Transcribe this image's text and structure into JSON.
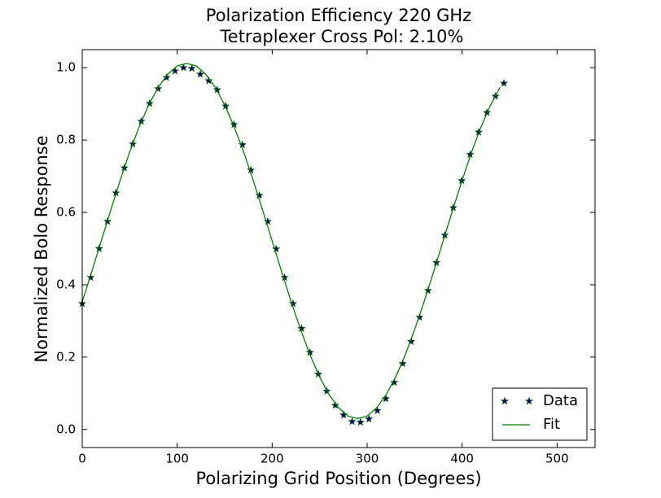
{
  "chart_data": {
    "type": "line",
    "title": "Polarization Efficiency 220 GHz",
    "subtitle": "Tetraplexer Cross Pol: 2.10%",
    "x_label": "Polarizing Grid Position (Degrees)",
    "y_label": "Normalized Bolo Response",
    "xlim": [
      0,
      540
    ],
    "ylim": [
      -0.05,
      1.05
    ],
    "xticks": [
      0,
      100,
      200,
      300,
      400,
      500
    ],
    "yticks": [
      {
        "value": 0,
        "label": "0.0"
      },
      {
        "value": 0.2,
        "label": "0.2"
      },
      {
        "value": 0.4,
        "label": "0.4"
      },
      {
        "value": 0.6,
        "label": "0.6"
      },
      {
        "value": 0.8,
        "label": "0.8"
      },
      {
        "value": 1,
        "label": "1.0"
      }
    ],
    "legend": "lower right",
    "series": [
      {
        "name": "Data",
        "style": "markers",
        "color": "#000066",
        "x": [
          0,
          8.9,
          17.8,
          26.6,
          35.5,
          44.4,
          53.3,
          62.2,
          71.0,
          79.9,
          88.8,
          97.7,
          106.6,
          115.4,
          124.3,
          133.2,
          142.1,
          151.0,
          159.8,
          168.7,
          177.6,
          186.5,
          195.4,
          204.2,
          213.1,
          222.0,
          230.9,
          239.8,
          248.6,
          257.5,
          266.4,
          275.3,
          284.2,
          293.0,
          301.9,
          310.8,
          319.7,
          328.6,
          337.4,
          346.3,
          355.2,
          364.1,
          373.0,
          381.8,
          390.7,
          399.6,
          408.5,
          417.4,
          426.2,
          435.1,
          444.0
        ],
        "values": [
          0.348,
          0.42,
          0.5,
          0.575,
          0.654,
          0.723,
          0.789,
          0.852,
          0.901,
          0.942,
          0.973,
          0.991,
          1.0,
          0.998,
          0.982,
          0.964,
          0.939,
          0.894,
          0.843,
          0.787,
          0.717,
          0.647,
          0.575,
          0.499,
          0.42,
          0.348,
          0.279,
          0.213,
          0.153,
          0.106,
          0.067,
          0.04,
          0.022,
          0.02,
          0.029,
          0.052,
          0.085,
          0.13,
          0.182,
          0.243,
          0.31,
          0.384,
          0.461,
          0.537,
          0.613,
          0.688,
          0.76,
          0.822,
          0.876,
          0.921,
          0.957
        ]
      },
      {
        "name": "Fit",
        "style": "line",
        "color": "#008000",
        "x": [
          0,
          10,
          20,
          30,
          40,
          50,
          60,
          70,
          80,
          90,
          100,
          110,
          120,
          130,
          140,
          150,
          160,
          170,
          180,
          190,
          200,
          210,
          220,
          230,
          240,
          250,
          260,
          270,
          280,
          290,
          300,
          310,
          320,
          330,
          340,
          350,
          360,
          370,
          380,
          390,
          400,
          410,
          420,
          430,
          440
        ],
        "values": [
          0.353,
          0.436,
          0.521,
          0.606,
          0.689,
          0.767,
          0.837,
          0.897,
          0.946,
          0.982,
          1.005,
          1.012,
          1.005,
          0.982,
          0.946,
          0.897,
          0.837,
          0.767,
          0.689,
          0.606,
          0.521,
          0.436,
          0.353,
          0.276,
          0.205,
          0.145,
          0.096,
          0.06,
          0.037,
          0.03,
          0.037,
          0.06,
          0.096,
          0.145,
          0.205,
          0.276,
          0.353,
          0.436,
          0.521,
          0.606,
          0.689,
          0.767,
          0.837,
          0.897,
          0.946
        ]
      }
    ]
  }
}
